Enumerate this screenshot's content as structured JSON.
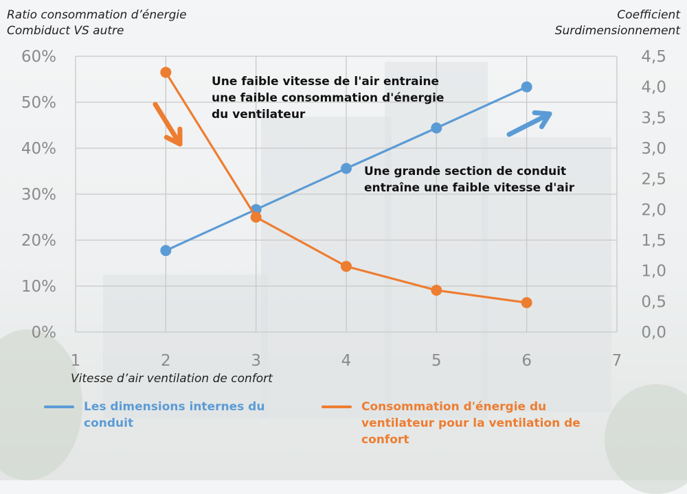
{
  "axis_titles": {
    "y_left": [
      "Ratio consommation d’énergie",
      "Combiduct VS autre"
    ],
    "y_right": [
      "Coefficient",
      "Surdimensionnement"
    ],
    "x": "Vitesse d’air ventilation de confort"
  },
  "annotations": {
    "air_speed": [
      "Une faible vitesse de l'air entraine",
      "une faible consommation d'énergie",
      "du ventilateur"
    ],
    "section": [
      "Une grande section de conduit",
      "entraîne une faible vitesse d'air"
    ]
  },
  "legend": {
    "blue": [
      "Les dimensions internes du",
      "conduit"
    ],
    "orange": [
      "Consommation d'énergie du",
      "ventilateur pour la ventilation de",
      "confort"
    ]
  },
  "colors": {
    "blue": "#5b9bd5",
    "orange": "#ed7d31",
    "grid": "#c8c8c8",
    "tick": "#8a8a8a"
  },
  "chart_data": {
    "type": "line",
    "x_ticks": [
      "1",
      "2",
      "3",
      "4",
      "5",
      "6",
      "7"
    ],
    "y_left_ticks": [
      "0%",
      "10%",
      "20%",
      "30%",
      "40%",
      "50%",
      "60%"
    ],
    "y_right_ticks": [
      "0,0",
      "0,5",
      "1,0",
      "1,5",
      "2,0",
      "2,5",
      "3,0",
      "3,5",
      "4,0",
      "4,5"
    ],
    "xlim": [
      1,
      7
    ],
    "ylim_left": [
      0,
      60
    ],
    "ylim_right": [
      0,
      4.5
    ],
    "series": [
      {
        "name": "Les dimensions internes du conduit",
        "axis": "right",
        "color": "blue",
        "x": [
          2,
          3,
          4,
          5,
          6
        ],
        "y": [
          1.33,
          2.0,
          2.67,
          3.33,
          4.0
        ]
      },
      {
        "name": "Consommation d'énergie du ventilateur pour la ventilation de confort",
        "axis": "left",
        "color": "orange",
        "x": [
          2,
          3,
          4,
          5,
          6
        ],
        "y": [
          56.5,
          25.0,
          14.3,
          9.1,
          6.4
        ]
      }
    ],
    "arrows": [
      {
        "color": "orange",
        "direction": "down"
      },
      {
        "color": "blue",
        "direction": "up"
      }
    ],
    "grid": true
  }
}
